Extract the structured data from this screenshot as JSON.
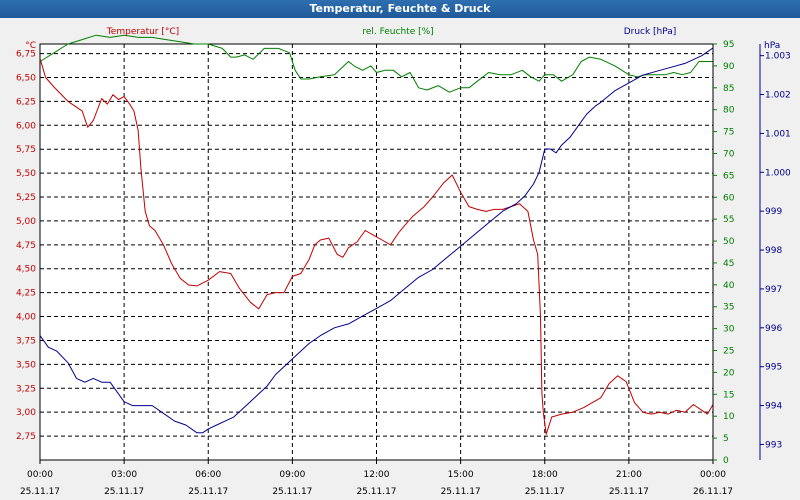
{
  "window": {
    "title": "Temperatur, Feuchte & Druck"
  },
  "colors": {
    "temperature": "#c00000",
    "humidity": "#008000",
    "pressure": "#000090",
    "grid": "#000000",
    "background": "#ffffff"
  },
  "chart_data": {
    "type": "line",
    "title": "Temperatur, Feuchte & Druck",
    "x_range": [
      0,
      24
    ],
    "grid": "dashed",
    "x_ticks": [
      {
        "time": "00:00",
        "date": "25.11.17"
      },
      {
        "time": "03:00",
        "date": "25.11.17"
      },
      {
        "time": "06:00",
        "date": "25.11.17"
      },
      {
        "time": "09:00",
        "date": "25.11.17"
      },
      {
        "time": "12:00",
        "date": "25.11.17"
      },
      {
        "time": "15:00",
        "date": "25.11.17"
      },
      {
        "time": "18:00",
        "date": "25.11.17"
      },
      {
        "time": "21:00",
        "date": "25.11.17"
      },
      {
        "time": "00:00",
        "date": "26.11.17"
      }
    ],
    "axes": {
      "temperature": {
        "label": "Temperatur [°C]",
        "unit": "°C",
        "range": [
          2.5,
          6.85
        ],
        "ticks": [
          "6,75",
          "6,50",
          "6,25",
          "6,00",
          "5,75",
          "5,50",
          "5,25",
          "5,00",
          "4,75",
          "4,50",
          "4,25",
          "4,00",
          "3,75",
          "3,50",
          "3,25",
          "3,00",
          "2,75"
        ]
      },
      "humidity": {
        "label": "rel. Feuchte [%]",
        "unit": "%",
        "range": [
          0,
          95
        ],
        "ticks": [
          "95",
          "90",
          "85",
          "80",
          "75",
          "70",
          "65",
          "60",
          "55",
          "50",
          "45",
          "40",
          "35",
          "30",
          "25",
          "20",
          "15",
          "10",
          "5",
          "0"
        ]
      },
      "pressure": {
        "label": "Druck [hPa]",
        "unit": "hPa",
        "range": [
          992.6,
          1003.3
        ],
        "tick_values": [
          1003,
          1002,
          1001,
          1000,
          999,
          998,
          997,
          996,
          995,
          994,
          993
        ],
        "ticks": [
          "1.003",
          "1.002",
          "1.001",
          "1.000",
          "999",
          "998",
          "997",
          "996",
          "995",
          "994",
          "993"
        ]
      }
    },
    "series": [
      {
        "name": "Temperatur [°C]",
        "axis": "temperature",
        "x": [
          0,
          0.2,
          0.5,
          1.0,
          1.5,
          1.7,
          1.9,
          2.2,
          2.4,
          2.6,
          2.8,
          3.0,
          3.2,
          3.35,
          3.5,
          3.6,
          3.75,
          3.9,
          4.1,
          4.4,
          4.7,
          5.0,
          5.3,
          5.6,
          6.0,
          6.4,
          6.8,
          7.1,
          7.5,
          7.8,
          8.1,
          8.4,
          8.7,
          9.0,
          9.3,
          9.6,
          9.8,
          10.0,
          10.3,
          10.6,
          10.8,
          11.0,
          11.3,
          11.6,
          11.9,
          12.2,
          12.5,
          12.8,
          13.0,
          13.3,
          13.7,
          14.0,
          14.4,
          14.7,
          15.0,
          15.3,
          15.6,
          15.9,
          16.2,
          16.5,
          16.8,
          17.1,
          17.4,
          17.6,
          17.75,
          17.85,
          17.9,
          17.95,
          18.05,
          18.25,
          18.6,
          19.0,
          19.4,
          19.7,
          20.0,
          20.3,
          20.6,
          20.9,
          21.2,
          21.5,
          21.8,
          22.1,
          22.4,
          22.7,
          23.0,
          23.3,
          23.6,
          23.8,
          24.0
        ],
        "values": [
          6.7,
          6.5,
          6.4,
          6.25,
          6.15,
          5.98,
          6.05,
          6.28,
          6.22,
          6.32,
          6.27,
          6.3,
          6.22,
          6.15,
          5.95,
          5.55,
          5.1,
          4.95,
          4.9,
          4.75,
          4.55,
          4.4,
          4.33,
          4.32,
          4.38,
          4.47,
          4.45,
          4.3,
          4.15,
          4.08,
          4.23,
          4.25,
          4.25,
          4.42,
          4.45,
          4.6,
          4.75,
          4.8,
          4.82,
          4.65,
          4.62,
          4.72,
          4.78,
          4.9,
          4.85,
          4.8,
          4.75,
          4.88,
          4.95,
          5.05,
          5.15,
          5.25,
          5.4,
          5.48,
          5.3,
          5.15,
          5.12,
          5.1,
          5.12,
          5.12,
          5.15,
          5.18,
          5.1,
          4.8,
          4.65,
          4.0,
          3.2,
          3.0,
          2.77,
          2.95,
          2.98,
          3.0,
          3.05,
          3.1,
          3.15,
          3.3,
          3.38,
          3.32,
          3.1,
          3.0,
          2.98,
          3.0,
          2.98,
          3.02,
          3.0,
          3.08,
          3.02,
          2.98,
          3.08
        ]
      },
      {
        "name": "rel. Feuchte [%]",
        "axis": "humidity",
        "x": [
          0,
          0.5,
          1.0,
          1.5,
          2.0,
          2.5,
          3.0,
          3.5,
          4.0,
          4.5,
          5.0,
          5.5,
          6.0,
          6.5,
          6.8,
          7.0,
          7.3,
          7.6,
          8.0,
          8.5,
          8.9,
          9.1,
          9.3,
          9.6,
          10.0,
          10.5,
          11.0,
          11.2,
          11.5,
          11.8,
          12.0,
          12.3,
          12.6,
          12.9,
          13.2,
          13.5,
          13.8,
          14.2,
          14.6,
          15.0,
          15.3,
          15.6,
          16.0,
          16.4,
          16.8,
          17.2,
          17.5,
          17.8,
          18.0,
          18.3,
          18.6,
          19.0,
          19.3,
          19.6,
          20.0,
          20.5,
          21.0,
          21.3,
          21.6,
          22.0,
          22.3,
          22.6,
          22.9,
          23.2,
          23.5,
          23.8,
          24.0
        ],
        "values": [
          91,
          93,
          95,
          96,
          97,
          96.5,
          97,
          96.5,
          96.5,
          96,
          95.5,
          95,
          95,
          94,
          92,
          92,
          92.5,
          91.5,
          94,
          94,
          93,
          89,
          87,
          87,
          87.5,
          88,
          91,
          90,
          89,
          90,
          88.5,
          89,
          89,
          87.5,
          88.5,
          85,
          84.5,
          85.5,
          84,
          85,
          85,
          86.5,
          88.5,
          88,
          88,
          89,
          87.5,
          86.5,
          88,
          88,
          86.5,
          88,
          91,
          92,
          91.5,
          90,
          88,
          87.5,
          88,
          88,
          88,
          88.5,
          88,
          88.5,
          91,
          91,
          91
        ]
      },
      {
        "name": "Druck [hPa]",
        "axis": "pressure",
        "x": [
          0,
          0.3,
          0.6,
          1.0,
          1.3,
          1.6,
          1.9,
          2.2,
          2.5,
          2.8,
          3.0,
          3.3,
          3.6,
          4.0,
          4.4,
          4.8,
          5.2,
          5.6,
          5.8,
          6.0,
          6.3,
          6.6,
          6.9,
          7.2,
          7.5,
          7.8,
          8.1,
          8.4,
          8.7,
          9.0,
          9.3,
          9.6,
          10.0,
          10.5,
          11.0,
          11.5,
          12.0,
          12.5,
          13.0,
          13.5,
          14.0,
          14.5,
          15.0,
          15.5,
          16.0,
          16.5,
          17.0,
          17.3,
          17.6,
          17.8,
          18.0,
          18.2,
          18.4,
          18.6,
          18.9,
          19.2,
          19.5,
          19.8,
          20.0,
          20.5,
          21.0,
          21.5,
          22.0,
          22.5,
          23.0,
          23.3,
          23.6,
          23.8,
          24.0
        ],
        "values": [
          995.8,
          995.5,
          995.4,
          995.1,
          994.7,
          994.6,
          994.7,
          994.6,
          994.6,
          994.3,
          994.1,
          994.0,
          994.0,
          994.0,
          993.8,
          993.6,
          993.5,
          993.3,
          993.3,
          993.4,
          993.5,
          993.6,
          993.7,
          993.9,
          994.1,
          994.3,
          994.5,
          994.8,
          995.0,
          995.2,
          995.4,
          995.6,
          995.8,
          996.0,
          996.1,
          996.3,
          996.5,
          996.7,
          997.0,
          997.3,
          997.5,
          997.8,
          998.1,
          998.4,
          998.7,
          999.0,
          999.2,
          999.4,
          999.7,
          1000.0,
          1000.6,
          1000.6,
          1000.5,
          1000.7,
          1000.9,
          1001.2,
          1001.5,
          1001.7,
          1001.8,
          1002.1,
          1002.3,
          1002.5,
          1002.6,
          1002.7,
          1002.8,
          1002.9,
          1003.0,
          1003.1,
          1003.2
        ]
      }
    ]
  }
}
